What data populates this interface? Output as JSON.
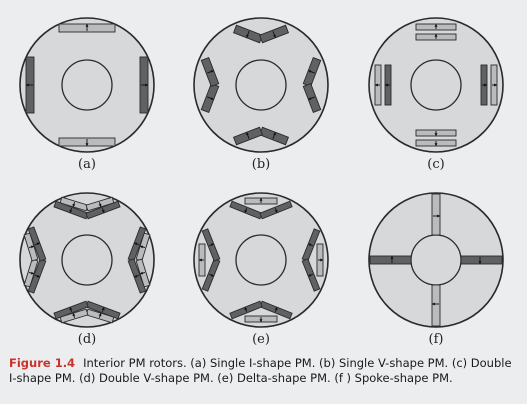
{
  "figure": {
    "number": "Figure 1.4",
    "caption": "Interior PM rotors. (a) Single I-shape PM. (b) Single V-shape PM. (c) Double I-shape PM. (d) Double V-shape PM. (e) Delta-shape PM. (f ) Spoke-shape PM.",
    "panels": [
      {
        "id": "a",
        "label": "(a)",
        "type": "single-i"
      },
      {
        "id": "b",
        "label": "(b)",
        "type": "single-v"
      },
      {
        "id": "c",
        "label": "(c)",
        "type": "double-i"
      },
      {
        "id": "d",
        "label": "(d)",
        "type": "double-v"
      },
      {
        "id": "e",
        "label": "(e)",
        "type": "delta"
      },
      {
        "id": "f",
        "label": "(f)",
        "type": "spoke"
      }
    ]
  },
  "colors": {
    "rotor_fill": "#d7d8da",
    "outline": "#2a2a2a",
    "magnet_light": "#b9bbbd",
    "magnet_dark": "#5f6164",
    "figure_number": "#c8342c"
  }
}
